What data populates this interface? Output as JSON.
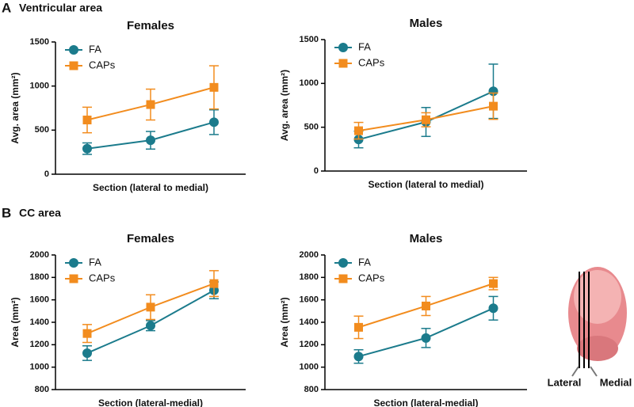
{
  "panels": [
    {
      "letter": "A",
      "title": "Ventricular area"
    },
    {
      "letter": "B",
      "title": "CC area"
    }
  ],
  "brain": {
    "labels": [
      "Lateral",
      "Medial"
    ]
  },
  "chart_data": [
    {
      "type": "line",
      "title": "Females",
      "x_label": "Section (lateral to medial)",
      "y_label": "Avg. area (mm²)",
      "categories": [
        null,
        null,
        null
      ],
      "ylim": [
        0,
        1500
      ],
      "yticks": [
        0,
        500,
        1000,
        1500
      ],
      "legend": "upper left",
      "series": [
        {
          "name": "FA",
          "color": "#1b7b8c",
          "marker": "circle",
          "values": [
            290,
            385,
            590
          ],
          "errors": [
            65,
            100,
            140
          ]
        },
        {
          "name": "CAPs",
          "color": "#f28c1e",
          "marker": "square",
          "values": [
            615,
            790,
            985
          ],
          "errors": [
            145,
            175,
            245
          ]
        }
      ]
    },
    {
      "type": "line",
      "title": "Males",
      "x_label": "Section (lateral to medial)",
      "y_label": "Avg. area (mm²)",
      "categories": [
        null,
        null,
        null
      ],
      "ylim": [
        0,
        1500
      ],
      "yticks": [
        0,
        500,
        1000,
        1500
      ],
      "legend": "upper left",
      "series": [
        {
          "name": "FA",
          "color": "#1b7b8c",
          "marker": "circle",
          "values": [
            360,
            560,
            910
          ],
          "errors": [
            95,
            165,
            310
          ]
        },
        {
          "name": "CAPs",
          "color": "#f28c1e",
          "marker": "square",
          "values": [
            460,
            585,
            740
          ],
          "errors": [
            95,
            80,
            150
          ]
        }
      ]
    },
    {
      "type": "line",
      "title": "Females",
      "x_label": "Section (lateral-medial)",
      "y_label": "Area (mm²)",
      "categories": [
        null,
        null,
        null
      ],
      "ylim": [
        800,
        2000
      ],
      "yticks": [
        800,
        1000,
        1200,
        1400,
        1600,
        1800,
        2000
      ],
      "legend": "upper left",
      "series": [
        {
          "name": "FA",
          "color": "#1b7b8c",
          "marker": "circle",
          "values": [
            1125,
            1370,
            1685
          ],
          "errors": [
            65,
            45,
            75
          ]
        },
        {
          "name": "CAPs",
          "color": "#f28c1e",
          "marker": "square",
          "values": [
            1300,
            1535,
            1745
          ],
          "errors": [
            80,
            110,
            115
          ]
        }
      ]
    },
    {
      "type": "line",
      "title": "Males",
      "x_label": "Section (lateral-medial)",
      "y_label": "Area (mm²)",
      "categories": [
        null,
        null,
        null
      ],
      "ylim": [
        800,
        2000
      ],
      "yticks": [
        800,
        1000,
        1200,
        1400,
        1600,
        1800,
        2000
      ],
      "legend": "upper left",
      "series": [
        {
          "name": "FA",
          "color": "#1b7b8c",
          "marker": "circle",
          "values": [
            1095,
            1260,
            1525
          ],
          "errors": [
            60,
            85,
            105
          ]
        },
        {
          "name": "CAPs",
          "color": "#f28c1e",
          "marker": "square",
          "values": [
            1355,
            1545,
            1745
          ],
          "errors": [
            100,
            85,
            55
          ]
        }
      ]
    }
  ]
}
